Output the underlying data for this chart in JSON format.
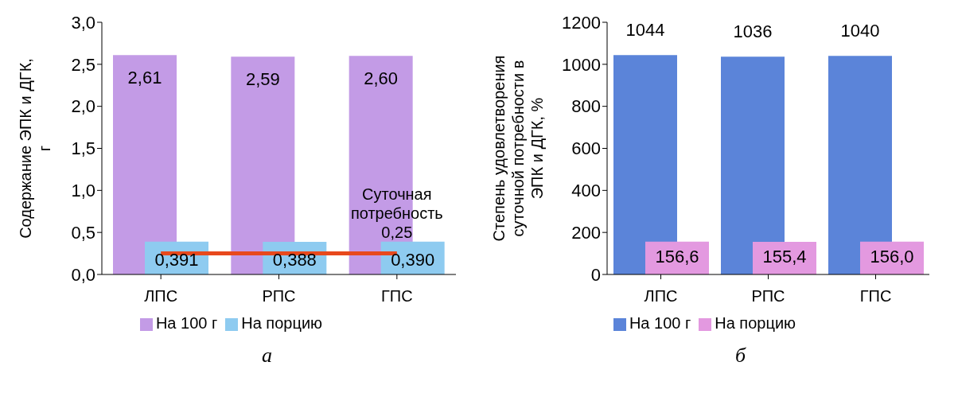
{
  "chart_data": [
    {
      "type": "bar",
      "categories": [
        "ЛПС",
        "РПС",
        "ГПС"
      ],
      "ylabel": "Содержание ЭПК и ДГК, г",
      "series": [
        {
          "name": "На 100 г",
          "color": "#c39be6",
          "values": [
            2.61,
            2.59,
            2.6
          ],
          "value_labels": [
            "2,61",
            "2,59",
            "2,60"
          ]
        },
        {
          "name": "На порцию",
          "color": "#8ecbf0",
          "values": [
            0.391,
            0.388,
            0.39
          ],
          "value_labels": [
            "0,391",
            "0,388",
            "0,390"
          ]
        }
      ],
      "ylim": [
        0,
        3
      ],
      "yticks": [
        {
          "value": 0,
          "label": "0,0"
        },
        {
          "value": 0.5,
          "label": "0,5"
        },
        {
          "value": 1,
          "label": "1,0"
        },
        {
          "value": 1.5,
          "label": "1,5"
        },
        {
          "value": 2,
          "label": "2,0"
        },
        {
          "value": 2.5,
          "label": "2,5"
        },
        {
          "value": 3,
          "label": "3,0"
        }
      ],
      "ref_lines": [
        {
          "axis": "y",
          "value": 0.25,
          "label": "Суточная потребность 0,25",
          "color": "#e8491d"
        }
      ],
      "annotations": [
        "а"
      ],
      "legend": "bottom",
      "grid": false
    },
    {
      "type": "bar",
      "categories": [
        "ЛПС",
        "РПС",
        "ГПС"
      ],
      "ylabel": "Степень удовлетворения суточной потребности в ЭПК и ДГК, %",
      "series": [
        {
          "name": "На 100 г",
          "color": "#5b84d9",
          "values": [
            1044,
            1036,
            1040
          ],
          "value_labels": [
            "1044",
            "1036",
            "1040"
          ]
        },
        {
          "name": "На порцию",
          "color": "#e399e0",
          "values": [
            156.6,
            155.4,
            156.0
          ],
          "value_labels": [
            "156,6",
            "155,4",
            "156,0"
          ]
        }
      ],
      "ylim": [
        0,
        1200
      ],
      "yticks": [
        0,
        200,
        400,
        600,
        800,
        1000,
        1200
      ],
      "annotations": [
        "б"
      ],
      "legend": "bottom",
      "grid": false
    }
  ]
}
